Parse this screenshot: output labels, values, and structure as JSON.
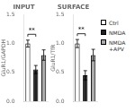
{
  "chart_data": [
    {
      "type": "bar",
      "title": "INPUT",
      "ylabel": "GluR1/GAPDH",
      "categories": [
        "Ctrl",
        "NMDA",
        "NMDA\n+APV"
      ],
      "values": [
        1.0,
        0.55,
        0.8
      ],
      "errors": [
        0.06,
        0.07,
        0.09
      ],
      "colors": [
        "white",
        "#222222",
        "#aaaaaa"
      ],
      "ylim": [
        0.0,
        1.5
      ],
      "yticks": [
        {
          "value": 0.0,
          "label": "0.0"
        },
        0.5,
        {
          "value": 1.0,
          "label": "1.0"
        },
        1.5
      ],
      "tick_labels": "y",
      "grid": false,
      "annotations": [
        {
          "text": "**",
          "categories": [
            "Ctrl",
            "NMDA"
          ]
        }
      ]
    },
    {
      "type": "bar",
      "title": "SURFACE",
      "ylabel": "GluR1/TfR",
      "categories": [
        "Ctrl",
        "NMDA",
        "NMDA\n+APV"
      ],
      "values": [
        1.0,
        0.45,
        0.8
      ],
      "errors": [
        0.07,
        0.08,
        0.1
      ],
      "colors": [
        "white",
        "#222222",
        "#aaaaaa"
      ],
      "ylim": [
        0.0,
        1.5
      ],
      "yticks": [
        {
          "value": 0.0,
          "label": "0.0"
        },
        0.5,
        {
          "value": 1.0,
          "label": "1.0"
        },
        1.5
      ],
      "tick_labels": "y",
      "grid": false,
      "legend": "right",
      "annotations": [
        {
          "text": "**",
          "categories": [
            "Ctrl",
            "NMDA"
          ]
        }
      ]
    }
  ]
}
